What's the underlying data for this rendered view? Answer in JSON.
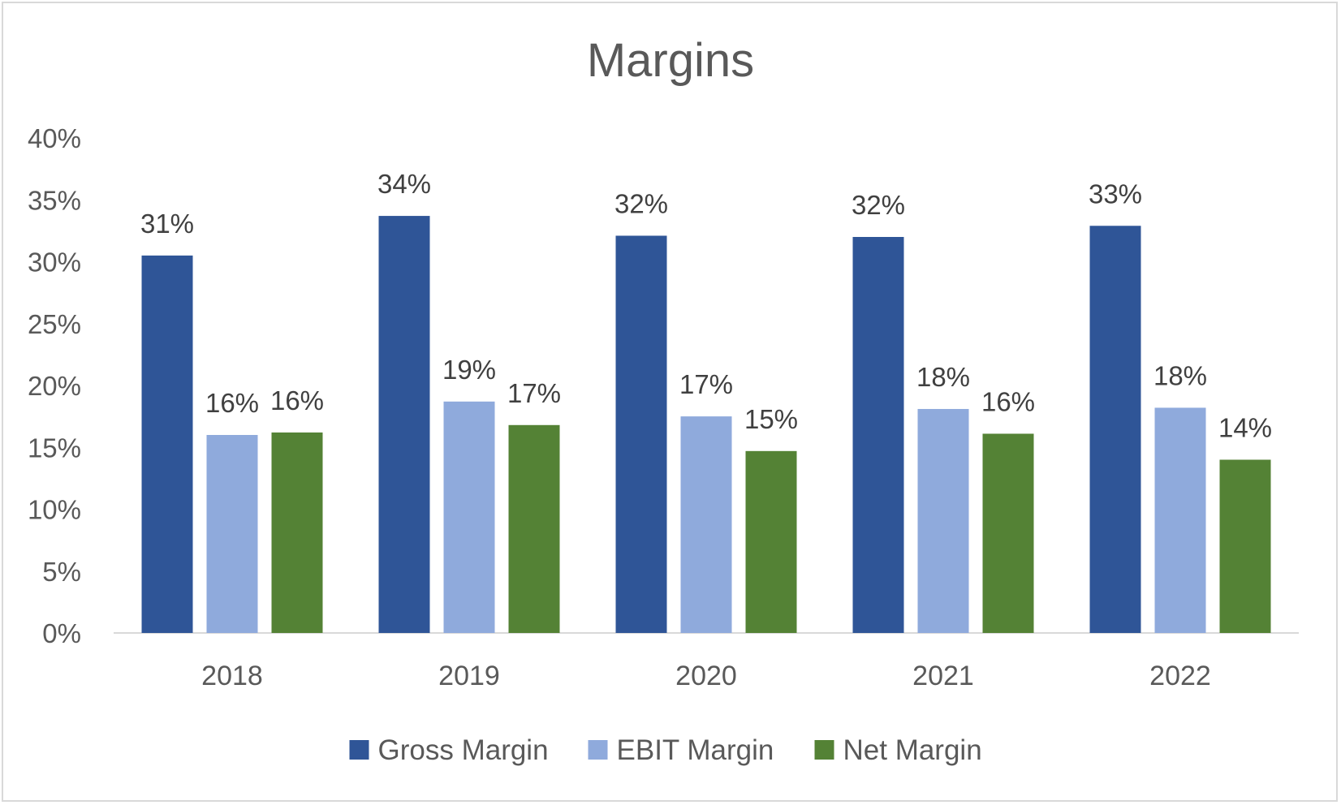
{
  "chart_data": {
    "type": "bar",
    "title": "Margins",
    "xlabel": "",
    "ylabel": "",
    "categories": [
      "2018",
      "2019",
      "2020",
      "2021",
      "2022"
    ],
    "ylim": [
      0,
      40
    ],
    "y_ticks": [
      "0%",
      "5%",
      "10%",
      "15%",
      "20%",
      "25%",
      "30%",
      "35%",
      "40%"
    ],
    "grid": false,
    "legend": "bottom",
    "series": [
      {
        "name": "Gross Margin",
        "color": "#2F5597",
        "values": [
          30.5,
          33.7,
          32.1,
          32.0,
          32.9
        ],
        "labels": [
          "31%",
          "34%",
          "32%",
          "32%",
          "33%"
        ]
      },
      {
        "name": "EBIT Margin",
        "color": "#8FAADC",
        "values": [
          16.0,
          18.7,
          17.5,
          18.1,
          18.2
        ],
        "labels": [
          "16%",
          "19%",
          "17%",
          "18%",
          "18%"
        ]
      },
      {
        "name": "Net Margin",
        "color": "#548235",
        "values": [
          16.2,
          16.8,
          14.7,
          16.1,
          14.0
        ],
        "labels": [
          "16%",
          "17%",
          "15%",
          "16%",
          "14%"
        ]
      }
    ]
  }
}
